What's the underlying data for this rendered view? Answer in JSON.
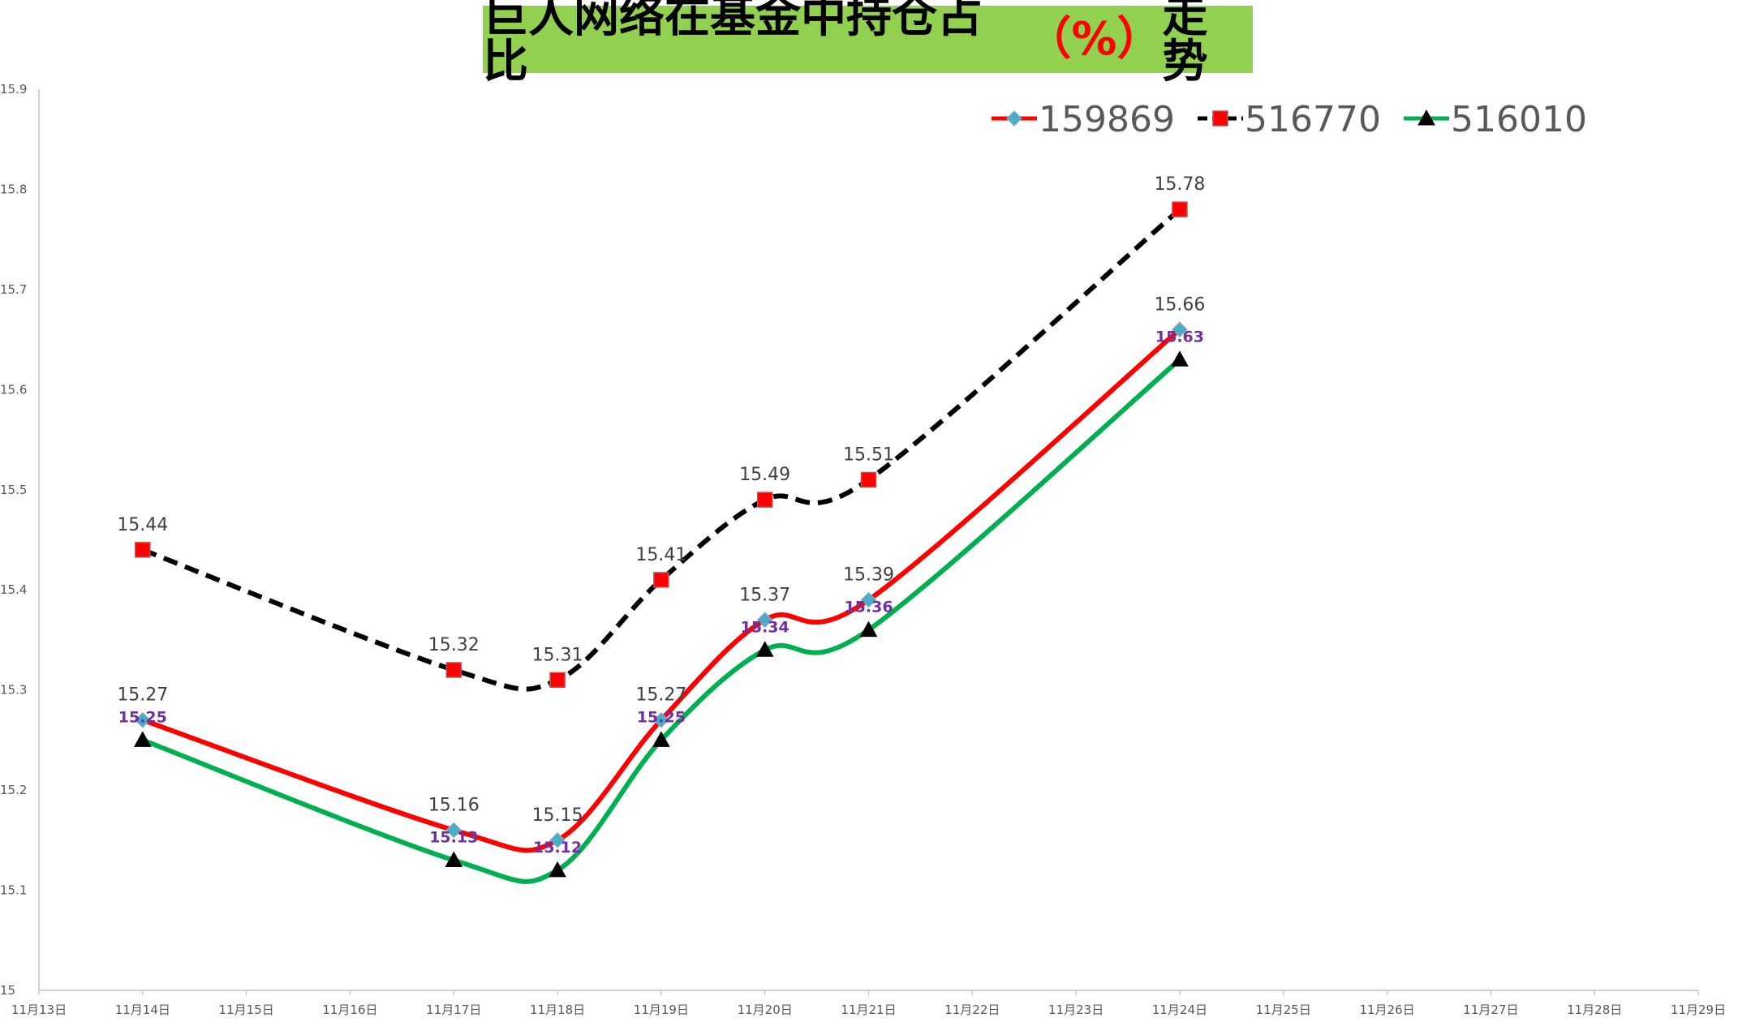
{
  "chart_data": {
    "type": "line",
    "title_main": "巨人网络在基金中持仓占比",
    "title_unit": "（%）",
    "title_end": "走势",
    "x_ticks": [
      "11月13日",
      "11月14日",
      "11月15日",
      "11月16日",
      "11月17日",
      "11月18日",
      "11月19日",
      "11月20日",
      "11月21日",
      "11月22日",
      "11月23日",
      "11月24日",
      "11月25日",
      "11月26日",
      "11月27日",
      "11月28日",
      "11月29日"
    ],
    "y_ticks": [
      "15",
      "15.1",
      "15.2",
      "15.3",
      "15.4",
      "15.5",
      "15.6",
      "15.7",
      "15.8",
      "15.9"
    ],
    "ylim": [
      15,
      15.9
    ],
    "x_dates": [
      "11月14日",
      "11月17日",
      "11月18日",
      "11月19日",
      "11月20日",
      "11月21日",
      "11月24日"
    ],
    "series": [
      {
        "name": "159869",
        "color": "#ff0000",
        "marker": "diamond",
        "marker_color": "#4bacc6",
        "line_style": "solid",
        "label_style": "dark",
        "label_pos": "above",
        "values": [
          15.27,
          15.16,
          15.15,
          15.27,
          15.37,
          15.39,
          15.66
        ]
      },
      {
        "name": "516770",
        "color": "#000000",
        "marker": "square",
        "marker_color": "#ff0000",
        "line_style": "dashed",
        "label_style": "dark",
        "label_pos": "above",
        "values": [
          15.44,
          15.32,
          15.31,
          15.41,
          15.49,
          15.51,
          15.78
        ]
      },
      {
        "name": "516010",
        "color": "#00b050",
        "marker": "triangle",
        "marker_color": "#000000",
        "line_style": "solid",
        "label_style": "purple",
        "label_pos": "near",
        "values": [
          15.25,
          15.13,
          15.12,
          15.25,
          15.34,
          15.36,
          15.63
        ]
      }
    ],
    "grid": false,
    "legend_position": "top-right"
  }
}
